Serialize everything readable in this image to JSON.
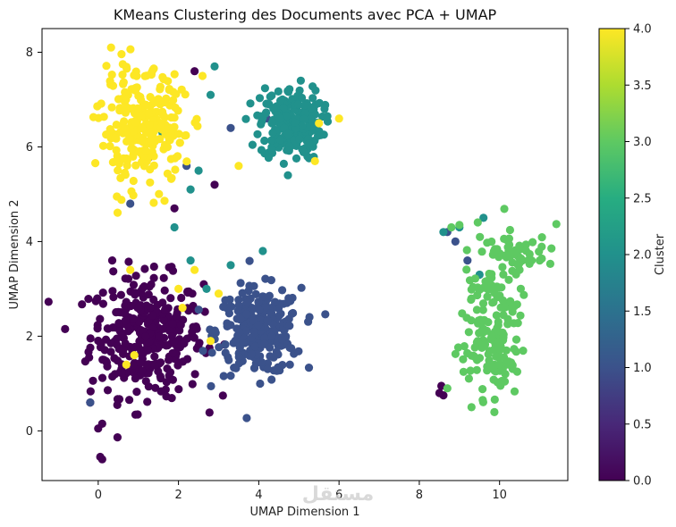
{
  "chart_data": {
    "type": "scatter",
    "title": "KMeans Clustering des Documents avec PCA + UMAP",
    "xlabel": "UMAP Dimension 1",
    "ylabel": "UMAP Dimension 2",
    "xlim": [
      -1.4,
      11.7
    ],
    "ylim": [
      -1.05,
      8.5
    ],
    "xticks": [
      "0",
      "2",
      "4",
      "6",
      "8",
      "10"
    ],
    "xtick_values": [
      0,
      2,
      4,
      6,
      8,
      10
    ],
    "yticks": [
      "0",
      "2",
      "4",
      "6",
      "8"
    ],
    "ytick_values": [
      0,
      2,
      4,
      6,
      8
    ],
    "grid": false,
    "colorbar": {
      "label": "Cluster",
      "range": [
        0.0,
        4.0
      ],
      "ticks": [
        "0.0",
        "0.5",
        "1.0",
        "1.5",
        "2.0",
        "2.5",
        "3.0",
        "3.5",
        "4.0"
      ],
      "tick_values": [
        0,
        0.5,
        1,
        1.5,
        2,
        2.5,
        3,
        3.5,
        4
      ],
      "colormap": "viridis"
    },
    "series": [
      {
        "name": "0",
        "color": "#440154",
        "cluster": 0,
        "center": [
          1.2,
          2.0
        ],
        "spread": [
          1.0,
          0.9
        ],
        "count": 330,
        "extra_points": [
          [
            0.1,
            -0.6
          ],
          [
            0.05,
            -0.55
          ],
          [
            0.0,
            0.05
          ],
          [
            0.1,
            0.15
          ],
          [
            -0.2,
            0.6
          ],
          [
            8.5,
            0.8
          ],
          [
            8.6,
            0.75
          ],
          [
            8.55,
            0.95
          ],
          [
            2.9,
            5.2
          ],
          [
            1.3,
            5.8
          ],
          [
            2.4,
            7.6
          ],
          [
            1.9,
            4.7
          ],
          [
            0.35,
            3.6
          ]
        ]
      },
      {
        "name": "1",
        "color": "#3b528b",
        "cluster": 1,
        "center": [
          4.0,
          2.1
        ],
        "spread": [
          0.75,
          0.65
        ],
        "count": 280,
        "extra_points": [
          [
            0.8,
            4.8
          ],
          [
            2.2,
            5.6
          ],
          [
            3.3,
            6.4
          ],
          [
            4.2,
            6.6
          ],
          [
            8.7,
            4.2
          ],
          [
            8.9,
            4.0
          ],
          [
            9.2,
            3.6
          ],
          [
            -0.2,
            0.6
          ]
        ]
      },
      {
        "name": "2",
        "color": "#21918c",
        "cluster": 2,
        "center": [
          4.8,
          6.5
        ],
        "spread": [
          0.55,
          0.55
        ],
        "count": 240,
        "extra_points": [
          [
            1.6,
            6.3
          ],
          [
            2.3,
            5.1
          ],
          [
            2.5,
            5.5
          ],
          [
            2.3,
            3.6
          ],
          [
            3.3,
            3.5
          ],
          [
            1.9,
            4.3
          ],
          [
            4.1,
            3.8
          ],
          [
            2.7,
            3.0
          ],
          [
            8.6,
            4.2
          ],
          [
            9.0,
            4.3
          ],
          [
            9.6,
            4.5
          ],
          [
            2.9,
            7.7
          ],
          [
            2.8,
            7.1
          ],
          [
            9.5,
            3.3
          ]
        ]
      },
      {
        "name": "3",
        "color": "#5ec962",
        "cluster": 3,
        "center": [
          9.8,
          2.8
        ],
        "spread": [
          0.55,
          1.0
        ],
        "count": 210,
        "extra_points": [
          [
            8.8,
            4.3
          ],
          [
            9.0,
            4.35
          ],
          [
            8.7,
            0.9
          ],
          [
            10.8,
            3.6
          ],
          [
            11.0,
            3.6
          ],
          [
            9.3,
            0.5
          ]
        ]
      },
      {
        "name": "4",
        "color": "#fde725",
        "cluster": 4,
        "center": [
          1.1,
          6.4
        ],
        "spread": [
          0.75,
          0.85
        ],
        "count": 260,
        "extra_points": [
          [
            0.8,
            3.4
          ],
          [
            2.4,
            3.4
          ],
          [
            2.0,
            3.0
          ],
          [
            0.9,
            1.6
          ],
          [
            0.7,
            1.4
          ],
          [
            2.8,
            1.9
          ],
          [
            2.1,
            2.6
          ],
          [
            3.0,
            2.9
          ],
          [
            5.5,
            6.5
          ],
          [
            6.0,
            6.6
          ],
          [
            5.4,
            5.7
          ],
          [
            3.5,
            5.6
          ],
          [
            2.6,
            7.5
          ]
        ]
      }
    ]
  },
  "watermark": "مستقل"
}
